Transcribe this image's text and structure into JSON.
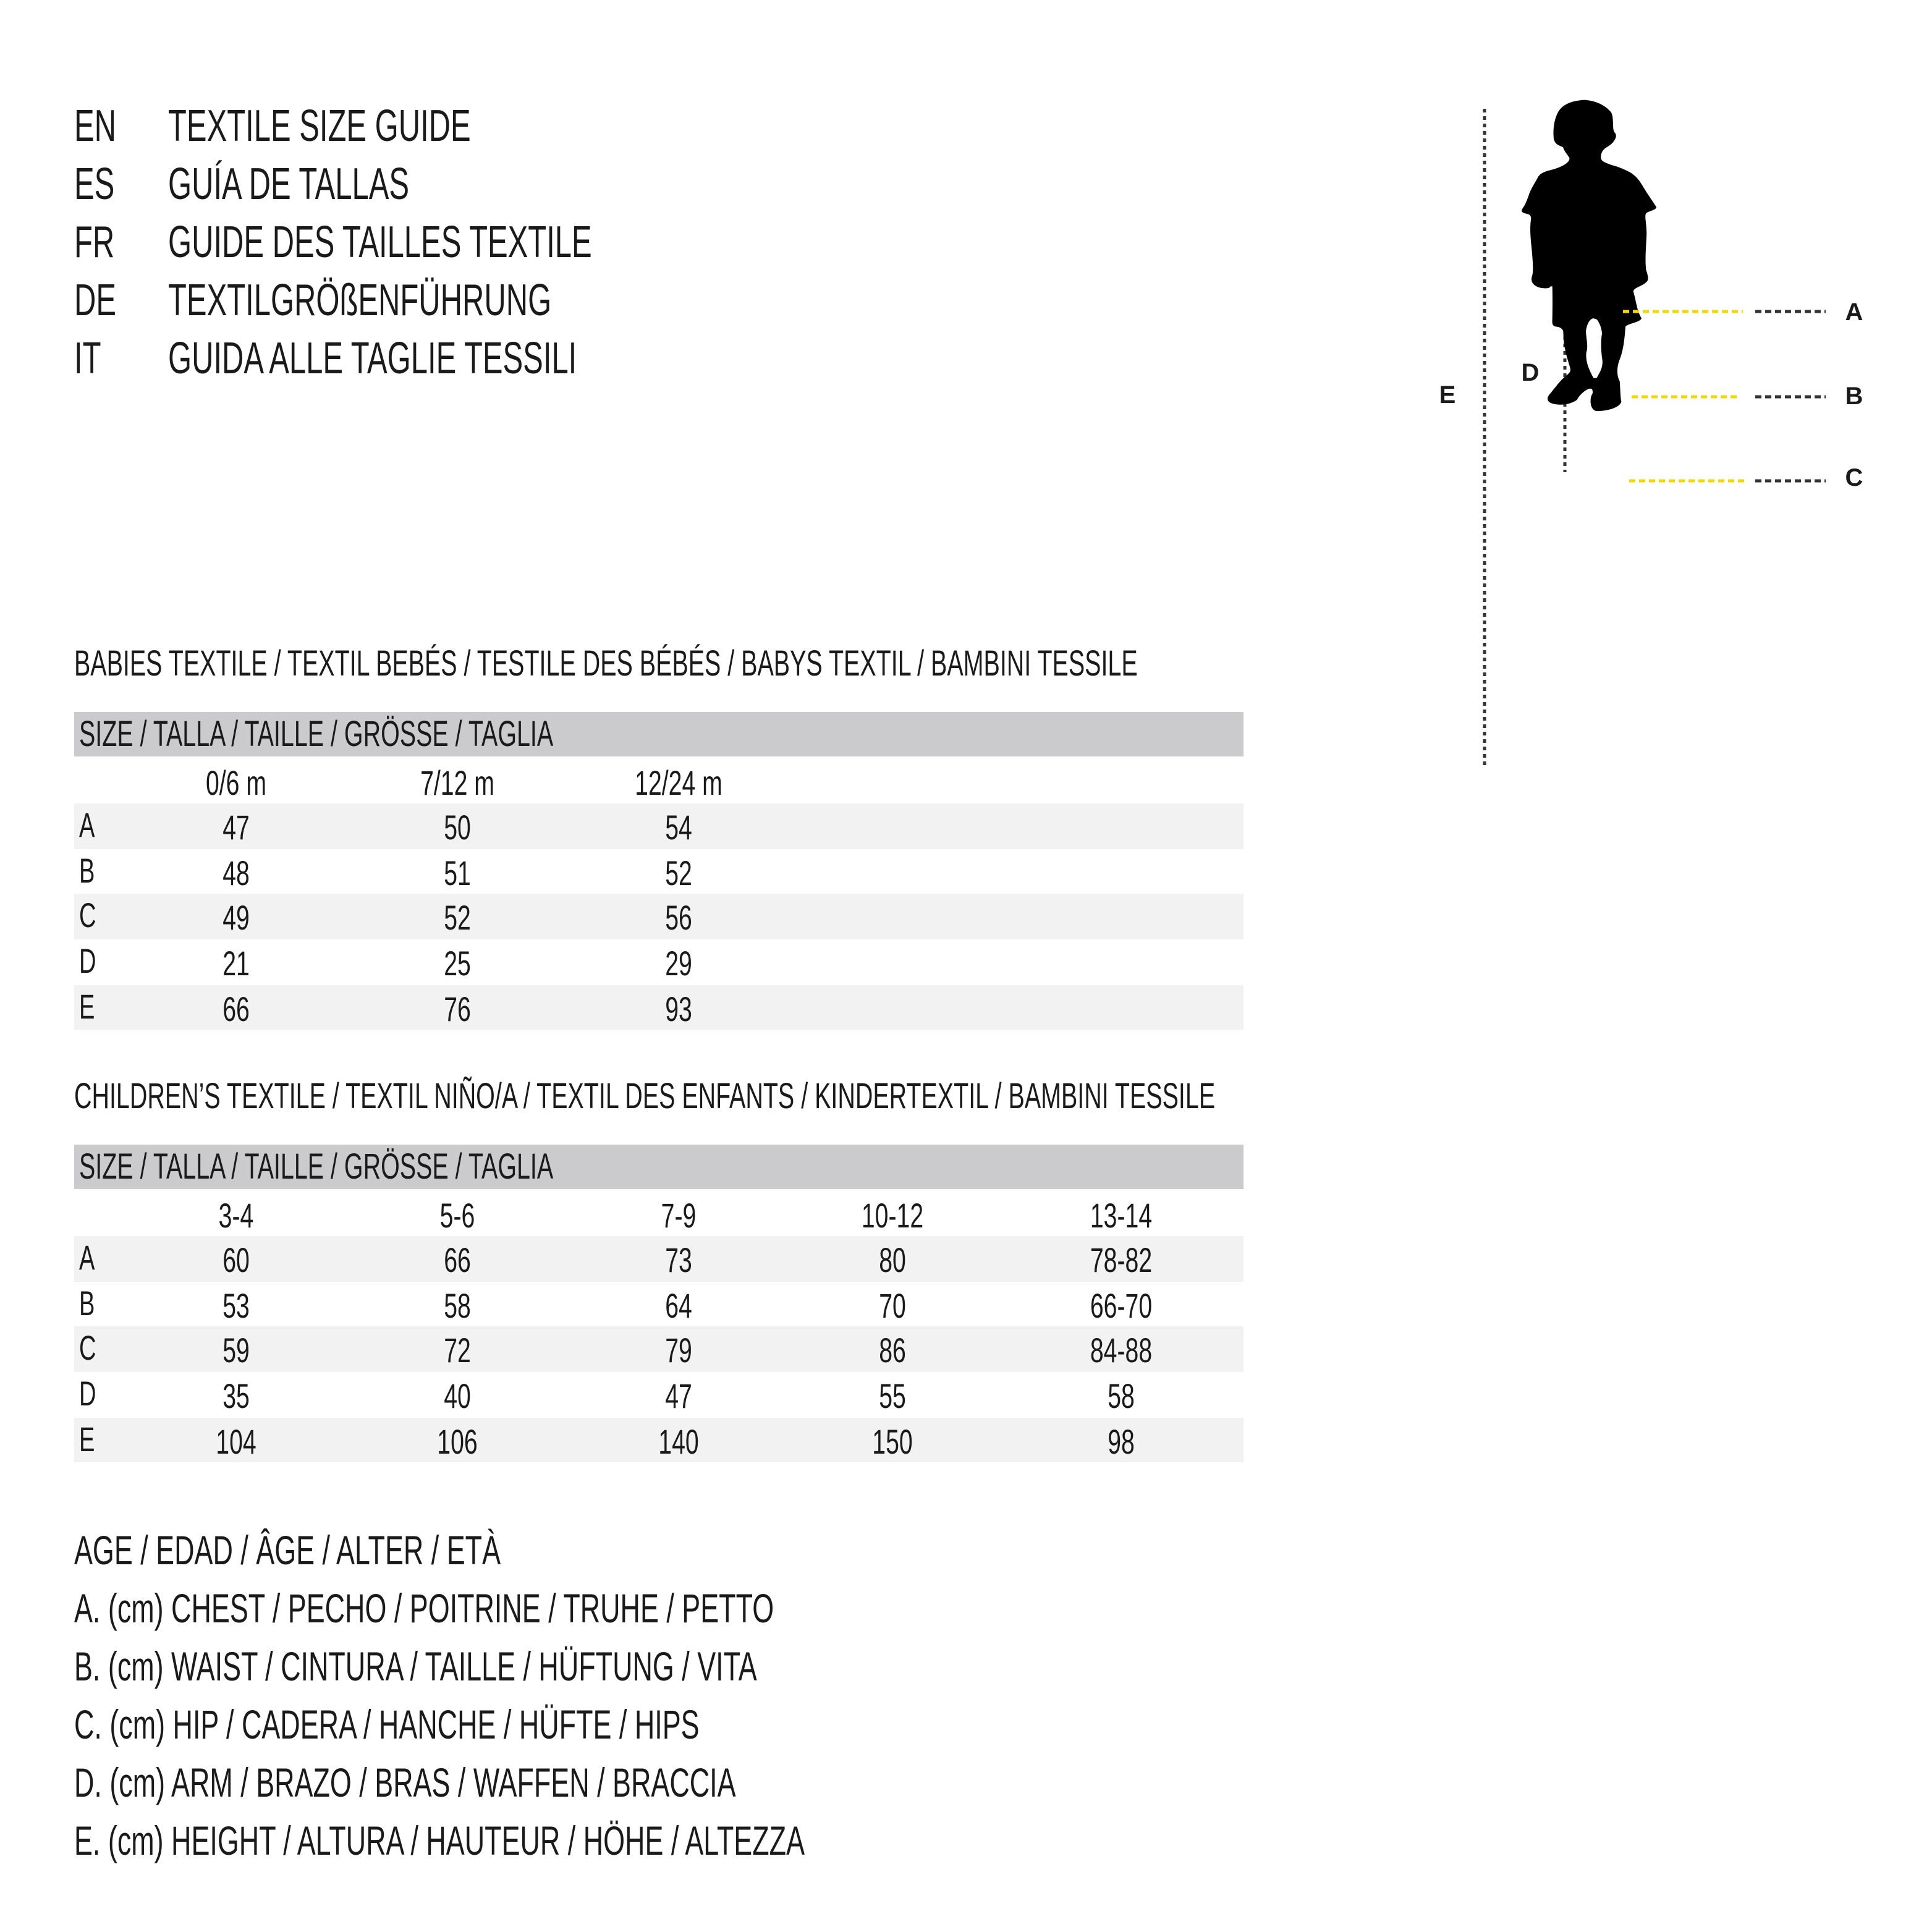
{
  "titles": [
    {
      "lang": "EN",
      "text": "TEXTILE SIZE GUIDE"
    },
    {
      "lang": "ES",
      "text": "GUÍA DE TALLAS"
    },
    {
      "lang": "FR",
      "text": "GUIDE DES TAILLES TEXTILE"
    },
    {
      "lang": "DE",
      "text": "TEXTILGRÖßENFÜHRUNG"
    },
    {
      "lang": "IT",
      "text": "GUIDA ALLE TAGLIE TESSILI"
    }
  ],
  "babies": {
    "heading": "BABIES TEXTILE / TEXTIL BEBÉS / TESTILE DES BÉBÉS / BABYS TEXTIL / BAMBINI TESSILE",
    "size_header": "SIZE / TALLA / TAILLE / GRÖSSE / TAGLIA",
    "columns": [
      "0/6 m",
      "7/12 m",
      "12/24 m"
    ],
    "rows": [
      {
        "label": "A",
        "values": [
          "47",
          "50",
          "54"
        ]
      },
      {
        "label": "B",
        "values": [
          "48",
          "51",
          "52"
        ]
      },
      {
        "label": "C",
        "values": [
          "49",
          "52",
          "56"
        ]
      },
      {
        "label": "D",
        "values": [
          "21",
          "25",
          "29"
        ]
      },
      {
        "label": "E",
        "values": [
          "66",
          "76",
          "93"
        ]
      }
    ]
  },
  "children": {
    "heading": "CHILDREN’S TEXTILE / TEXTIL NIÑO/A / TEXTIL DES ENFANTS / KINDERTEXTIL / BAMBINI TESSILE",
    "size_header": "SIZE / TALLA / TAILLE / GRÖSSE / TAGLIA",
    "columns": [
      "3-4",
      "5-6",
      "7-9",
      "10-12",
      "13-14"
    ],
    "rows": [
      {
        "label": "A",
        "values": [
          "60",
          "66",
          "73",
          "80",
          "78-82"
        ]
      },
      {
        "label": "B",
        "values": [
          "53",
          "58",
          "64",
          "70",
          "66-70"
        ]
      },
      {
        "label": "C",
        "values": [
          "59",
          "72",
          "79",
          "86",
          "84-88"
        ]
      },
      {
        "label": "D",
        "values": [
          "35",
          "40",
          "47",
          "55",
          "58"
        ]
      },
      {
        "label": "E",
        "values": [
          "104",
          "106",
          "140",
          "150",
          "98"
        ]
      }
    ]
  },
  "legend": [
    "AGE / EDAD / ÂGE / ALTER / ETÀ",
    "A. (cm) CHEST / PECHO / POITRINE / TRUHE / PETTO",
    "B. (cm) WAIST / CINTURA / TAILLE / HÜFTUNG / VITA",
    "C. (cm) HIP / CADERA / HANCHE / HÜFTE / HIPS",
    "D. (cm) ARM / BRAZO / BRAS / WAFFEN / BRACCIA",
    "E. (cm) HEIGHT / ALTURA / HAUTEUR / HÖHE / ALTEZZA"
  ],
  "figure": {
    "labels": {
      "a": "A",
      "b": "B",
      "c": "C",
      "d": "D",
      "e": "E"
    },
    "measure_color": "#f5d800",
    "silhouette_color": "#000000"
  }
}
